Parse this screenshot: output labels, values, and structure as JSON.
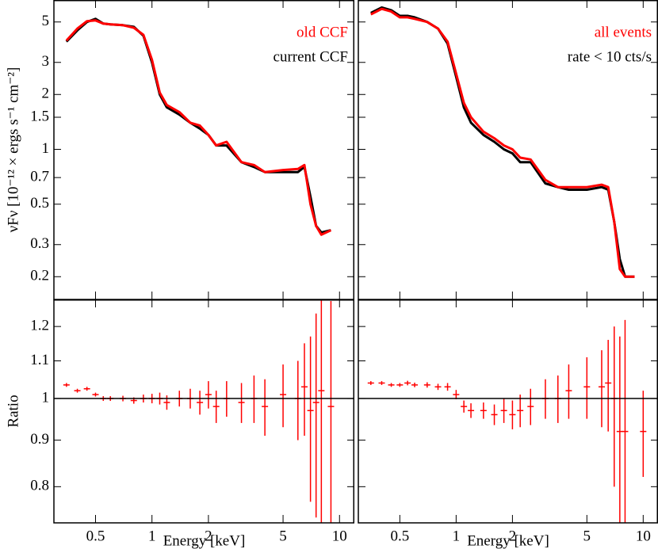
{
  "chart_data": [
    {
      "type": "line",
      "log_x": true,
      "log_y": true,
      "xlim": [
        0.3,
        12
      ],
      "ylim": [
        0.15,
        6.6
      ],
      "xticks": [
        0.5,
        1,
        2,
        5,
        10
      ],
      "xtick_labels": false,
      "yticks": [
        0.2,
        0.3,
        0.5,
        0.7,
        1,
        1.5,
        2,
        3,
        5
      ],
      "ytick_labels": true,
      "ylabel": "νFν [10⁻¹² × ergs  s⁻¹ cm⁻²]",
      "legend_corner": "upper right",
      "x": [
        0.35,
        0.4,
        0.45,
        0.5,
        0.55,
        0.6,
        0.7,
        0.8,
        0.9,
        1.0,
        1.1,
        1.2,
        1.4,
        1.6,
        1.8,
        2.0,
        2.2,
        2.5,
        3,
        3.5,
        4,
        5,
        6,
        6.5,
        7,
        7.5,
        8,
        9
      ],
      "series": [
        {
          "name": "old CCF",
          "color": "#ff0000",
          "values": [
            3.95,
            4.6,
            5.05,
            5.1,
            4.9,
            4.85,
            4.8,
            4.65,
            4.25,
            3.1,
            2.05,
            1.75,
            1.6,
            1.4,
            1.35,
            1.2,
            1.05,
            1.1,
            0.85,
            0.82,
            0.75,
            0.77,
            0.78,
            0.82,
            0.5,
            0.38,
            0.34,
            0.36
          ]
        },
        {
          "name": "current CCF",
          "color": "#000000",
          "values": [
            3.9,
            4.5,
            5.0,
            5.2,
            4.9,
            4.85,
            4.8,
            4.7,
            4.2,
            3.0,
            2.0,
            1.7,
            1.55,
            1.4,
            1.3,
            1.2,
            1.05,
            1.05,
            0.85,
            0.8,
            0.75,
            0.75,
            0.75,
            0.8,
            0.55,
            0.38,
            0.35,
            0.36
          ]
        }
      ]
    },
    {
      "type": "errorbar",
      "log_x": true,
      "log_y": true,
      "xlim": [
        0.3,
        12
      ],
      "ylim": [
        0.73,
        1.285
      ],
      "xticks": [
        0.5,
        1,
        2,
        5,
        10
      ],
      "xtick_labels": true,
      "yticks": [
        0.8,
        0.9,
        1,
        1.1,
        1.2
      ],
      "ytick_labels": true,
      "ylabel": "Ratio",
      "xlabel": "Energy [keV]",
      "hline": 1,
      "x": [
        0.35,
        0.4,
        0.45,
        0.5,
        0.55,
        0.6,
        0.7,
        0.8,
        0.9,
        1.0,
        1.1,
        1.2,
        1.4,
        1.6,
        1.8,
        2.0,
        2.2,
        2.5,
        3,
        3.5,
        4,
        5,
        6,
        6.5,
        7,
        7.5,
        8,
        9
      ],
      "series": [
        {
          "color": "#ff0000",
          "values": [
            1.035,
            1.02,
            1.025,
            1.01,
            1.0,
            1.0,
            1.0,
            0.995,
            1.0,
            1.0,
            1.0,
            0.99,
            1.0,
            1.0,
            0.99,
            1.01,
            0.98,
            1.0,
            0.99,
            1.0,
            0.98,
            1.01,
            1.0,
            1.03,
            0.97,
            0.99,
            1.02,
            0.98
          ],
          "errors": [
            0.005,
            0.005,
            0.005,
            0.005,
            0.006,
            0.006,
            0.007,
            0.008,
            0.01,
            0.012,
            0.015,
            0.018,
            0.02,
            0.025,
            0.03,
            0.035,
            0.04,
            0.045,
            0.05,
            0.06,
            0.07,
            0.08,
            0.1,
            0.12,
            0.2,
            0.25,
            0.3,
            0.3
          ]
        }
      ]
    },
    {
      "type": "line",
      "log_x": true,
      "log_y": true,
      "xlim": [
        0.3,
        12
      ],
      "ylim": [
        0.15,
        6.6
      ],
      "xticks": [
        0.5,
        1,
        2,
        5,
        10
      ],
      "xtick_labels": false,
      "yticks": [
        0.2,
        0.3,
        0.5,
        0.7,
        1,
        1.5,
        2,
        3,
        5
      ],
      "ytick_labels": false,
      "legend_corner": "upper right",
      "x": [
        0.35,
        0.4,
        0.45,
        0.5,
        0.55,
        0.6,
        0.7,
        0.8,
        0.9,
        1.0,
        1.1,
        1.2,
        1.4,
        1.6,
        1.8,
        2.0,
        2.2,
        2.5,
        3,
        3.5,
        4,
        5,
        6,
        6.5,
        7,
        7.5,
        8,
        9
      ],
      "series": [
        {
          "name": "all events",
          "color": "#ff0000",
          "values": [
            5.5,
            5.9,
            5.7,
            5.3,
            5.3,
            5.2,
            5.0,
            4.6,
            3.9,
            2.6,
            1.8,
            1.5,
            1.25,
            1.15,
            1.05,
            1.0,
            0.9,
            0.88,
            0.68,
            0.62,
            0.62,
            0.62,
            0.64,
            0.62,
            0.4,
            0.22,
            0.2,
            0.2
          ]
        },
        {
          "name": "rate < 10 cts/s",
          "color": "#000000",
          "values": [
            5.6,
            6.0,
            5.8,
            5.4,
            5.4,
            5.3,
            5.0,
            4.6,
            3.8,
            2.5,
            1.7,
            1.4,
            1.2,
            1.1,
            1.0,
            0.95,
            0.85,
            0.85,
            0.65,
            0.62,
            0.6,
            0.6,
            0.62,
            0.6,
            0.4,
            0.25,
            0.2,
            0.2
          ]
        }
      ]
    },
    {
      "type": "errorbar",
      "log_x": true,
      "log_y": true,
      "xlim": [
        0.3,
        12
      ],
      "ylim": [
        0.73,
        1.285
      ],
      "xticks": [
        0.5,
        1,
        2,
        5,
        10
      ],
      "xtick_labels": true,
      "yticks": [
        0.8,
        0.9,
        1,
        1.1,
        1.2
      ],
      "ytick_labels": false,
      "xlabel": "Energy [keV]",
      "hline": 1,
      "x": [
        0.35,
        0.4,
        0.45,
        0.5,
        0.55,
        0.6,
        0.7,
        0.8,
        0.9,
        1.0,
        1.1,
        1.2,
        1.4,
        1.6,
        1.8,
        2.0,
        2.2,
        2.5,
        3,
        3.5,
        4,
        5,
        6,
        6.5,
        7,
        7.5,
        8,
        10
      ],
      "series": [
        {
          "color": "#ff0000",
          "values": [
            1.04,
            1.04,
            1.035,
            1.035,
            1.04,
            1.035,
            1.035,
            1.03,
            1.03,
            1.01,
            0.98,
            0.97,
            0.97,
            0.96,
            0.97,
            0.96,
            0.97,
            0.98,
            1.0,
            1.0,
            1.02,
            1.03,
            1.03,
            1.04,
            1.0,
            0.92,
            0.92,
            0.92
          ],
          "errors": [
            0.005,
            0.005,
            0.005,
            0.005,
            0.006,
            0.006,
            0.007,
            0.008,
            0.01,
            0.012,
            0.015,
            0.018,
            0.02,
            0.025,
            0.03,
            0.035,
            0.04,
            0.045,
            0.05,
            0.06,
            0.07,
            0.08,
            0.1,
            0.12,
            0.2,
            0.25,
            0.3,
            0.1
          ]
        }
      ]
    }
  ]
}
